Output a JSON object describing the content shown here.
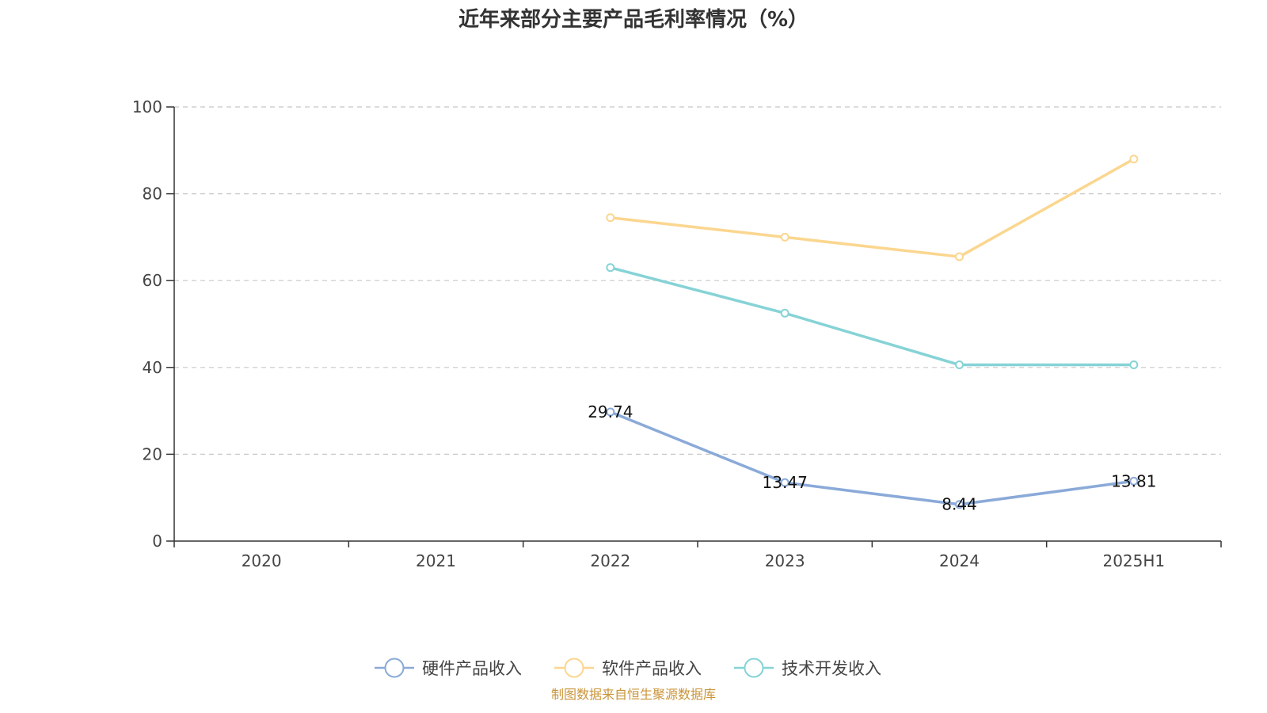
{
  "chart_data": {
    "type": "line",
    "title": "近年来部分主要产品毛利率情况（%）",
    "categories": [
      "2020",
      "2021",
      "2022",
      "2023",
      "2024",
      "2025H1"
    ],
    "ylim": [
      0,
      100
    ],
    "yticks": [
      0,
      20,
      40,
      60,
      80,
      100
    ],
    "ytick_labels": [
      "0",
      "20",
      "40",
      "60",
      "80",
      "100"
    ],
    "grid": true,
    "legend_position": "bottom",
    "series": [
      {
        "name": "硬件产品收入",
        "color": "#8aaad8",
        "values": [
          null,
          null,
          29.74,
          13.47,
          8.44,
          13.81
        ],
        "labels": [
          "",
          "",
          "29.74",
          "13.47",
          "8.44",
          "13.81"
        ]
      },
      {
        "name": "软件产品收入",
        "color": "#fbd68f",
        "values": [
          null,
          null,
          74.5,
          70.0,
          65.5,
          88.0
        ],
        "labels": [
          "",
          "",
          "",
          "",
          "",
          ""
        ]
      },
      {
        "name": "技术开发收入",
        "color": "#86d3d6",
        "values": [
          null,
          null,
          63.0,
          52.5,
          40.6,
          40.6
        ],
        "labels": [
          "",
          "",
          "",
          "",
          "",
          ""
        ]
      }
    ],
    "source_note": "制图数据来自恒生聚源数据库"
  }
}
